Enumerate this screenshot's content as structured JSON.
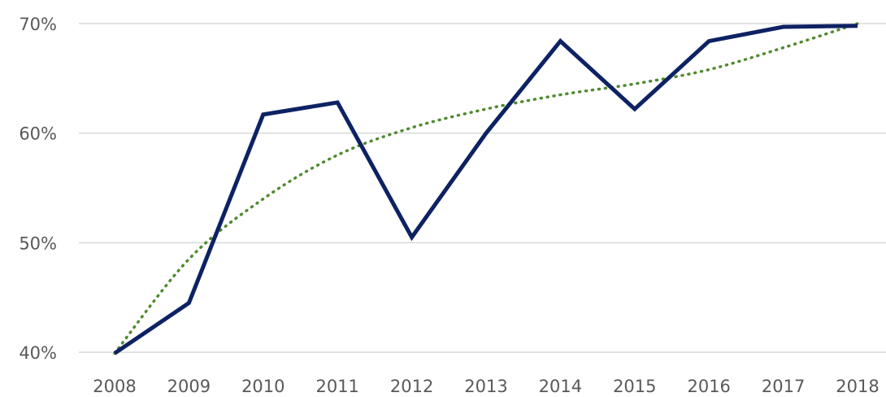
{
  "chart_data": {
    "type": "line",
    "title": "",
    "xlabel": "",
    "ylabel": "",
    "categories": [
      "2008",
      "2009",
      "2010",
      "2011",
      "2012",
      "2013",
      "2014",
      "2015",
      "2016",
      "2017",
      "2018"
    ],
    "ylim": [
      40,
      70
    ],
    "yticks": [
      40,
      50,
      60,
      70
    ],
    "ytick_labels": [
      "40%",
      "50%",
      "60%",
      "70%"
    ],
    "grid": true,
    "legend": "none",
    "series": [
      {
        "values": [
          39.9,
          44.5,
          61.7,
          62.8,
          50.5,
          60.0,
          68.4,
          62.2,
          68.4,
          69.7,
          69.8
        ],
        "color": "#0d2263",
        "style": "solid"
      },
      {
        "values": [
          39.9,
          48.5,
          54.0,
          58.0,
          60.5,
          62.2,
          63.5,
          64.5,
          65.8,
          67.8,
          70.0
        ],
        "color": "#4f8a2f",
        "style": "dotted",
        "role": "trendline"
      }
    ]
  }
}
